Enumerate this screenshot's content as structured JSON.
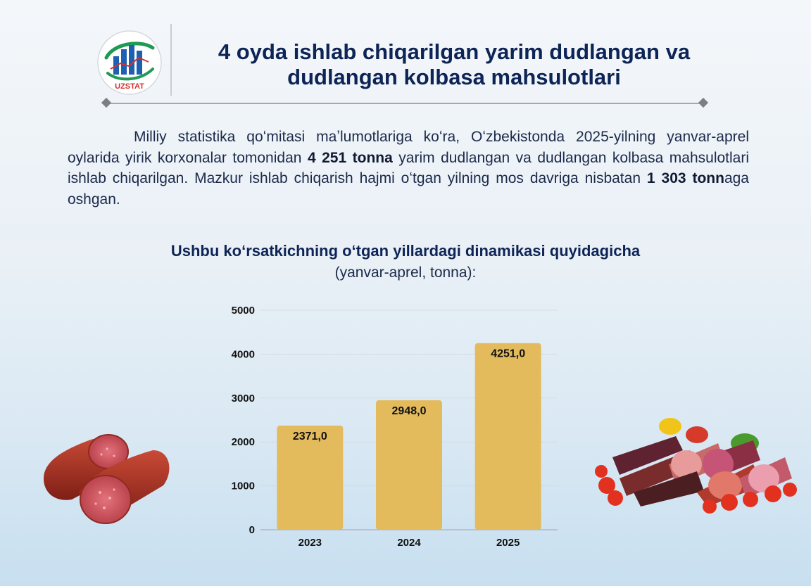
{
  "header": {
    "logo_text": "UZSTAT",
    "title_line1": "4 oyda ishlab chiqarilgan yarim dudlangan va",
    "title_line2": "dudlangan kolbasa mahsulotlari"
  },
  "paragraph": {
    "part1": "Milliy statistika qoʻmitasi maʼlumotlariga koʻra, Oʻzbekistonda 2025-yilning yanvar-aprel oylarida yirik korxonalar tomonidan ",
    "bold1": "4 251 tonna",
    "part2": " yarim dudlangan va dudlangan kolbasa mahsulotlari ishlab chiqarilgan. Mazkur ishlab chiqarish hajmi oʻtgan yilning mos davriga nisbatan ",
    "bold2": "1 303 tonn",
    "part3": "aga oshgan."
  },
  "chart_data": {
    "type": "bar",
    "title": "Ushbu koʻrsatkichning oʻtgan yillardagi dinamikasi quyidagicha",
    "subtitle": "(yanvar-aprel, tonna):",
    "categories": [
      "2023",
      "2024",
      "2025"
    ],
    "values": [
      2371.0,
      2948.0,
      4251.0
    ],
    "value_labels": [
      "2371,0",
      "2948,0",
      "4251,0"
    ],
    "yticks": [
      "0",
      "1000",
      "2000",
      "3000",
      "4000",
      "5000"
    ],
    "ylim": [
      0,
      5000
    ],
    "grid": true,
    "bar_color": "#e3bb5d"
  }
}
